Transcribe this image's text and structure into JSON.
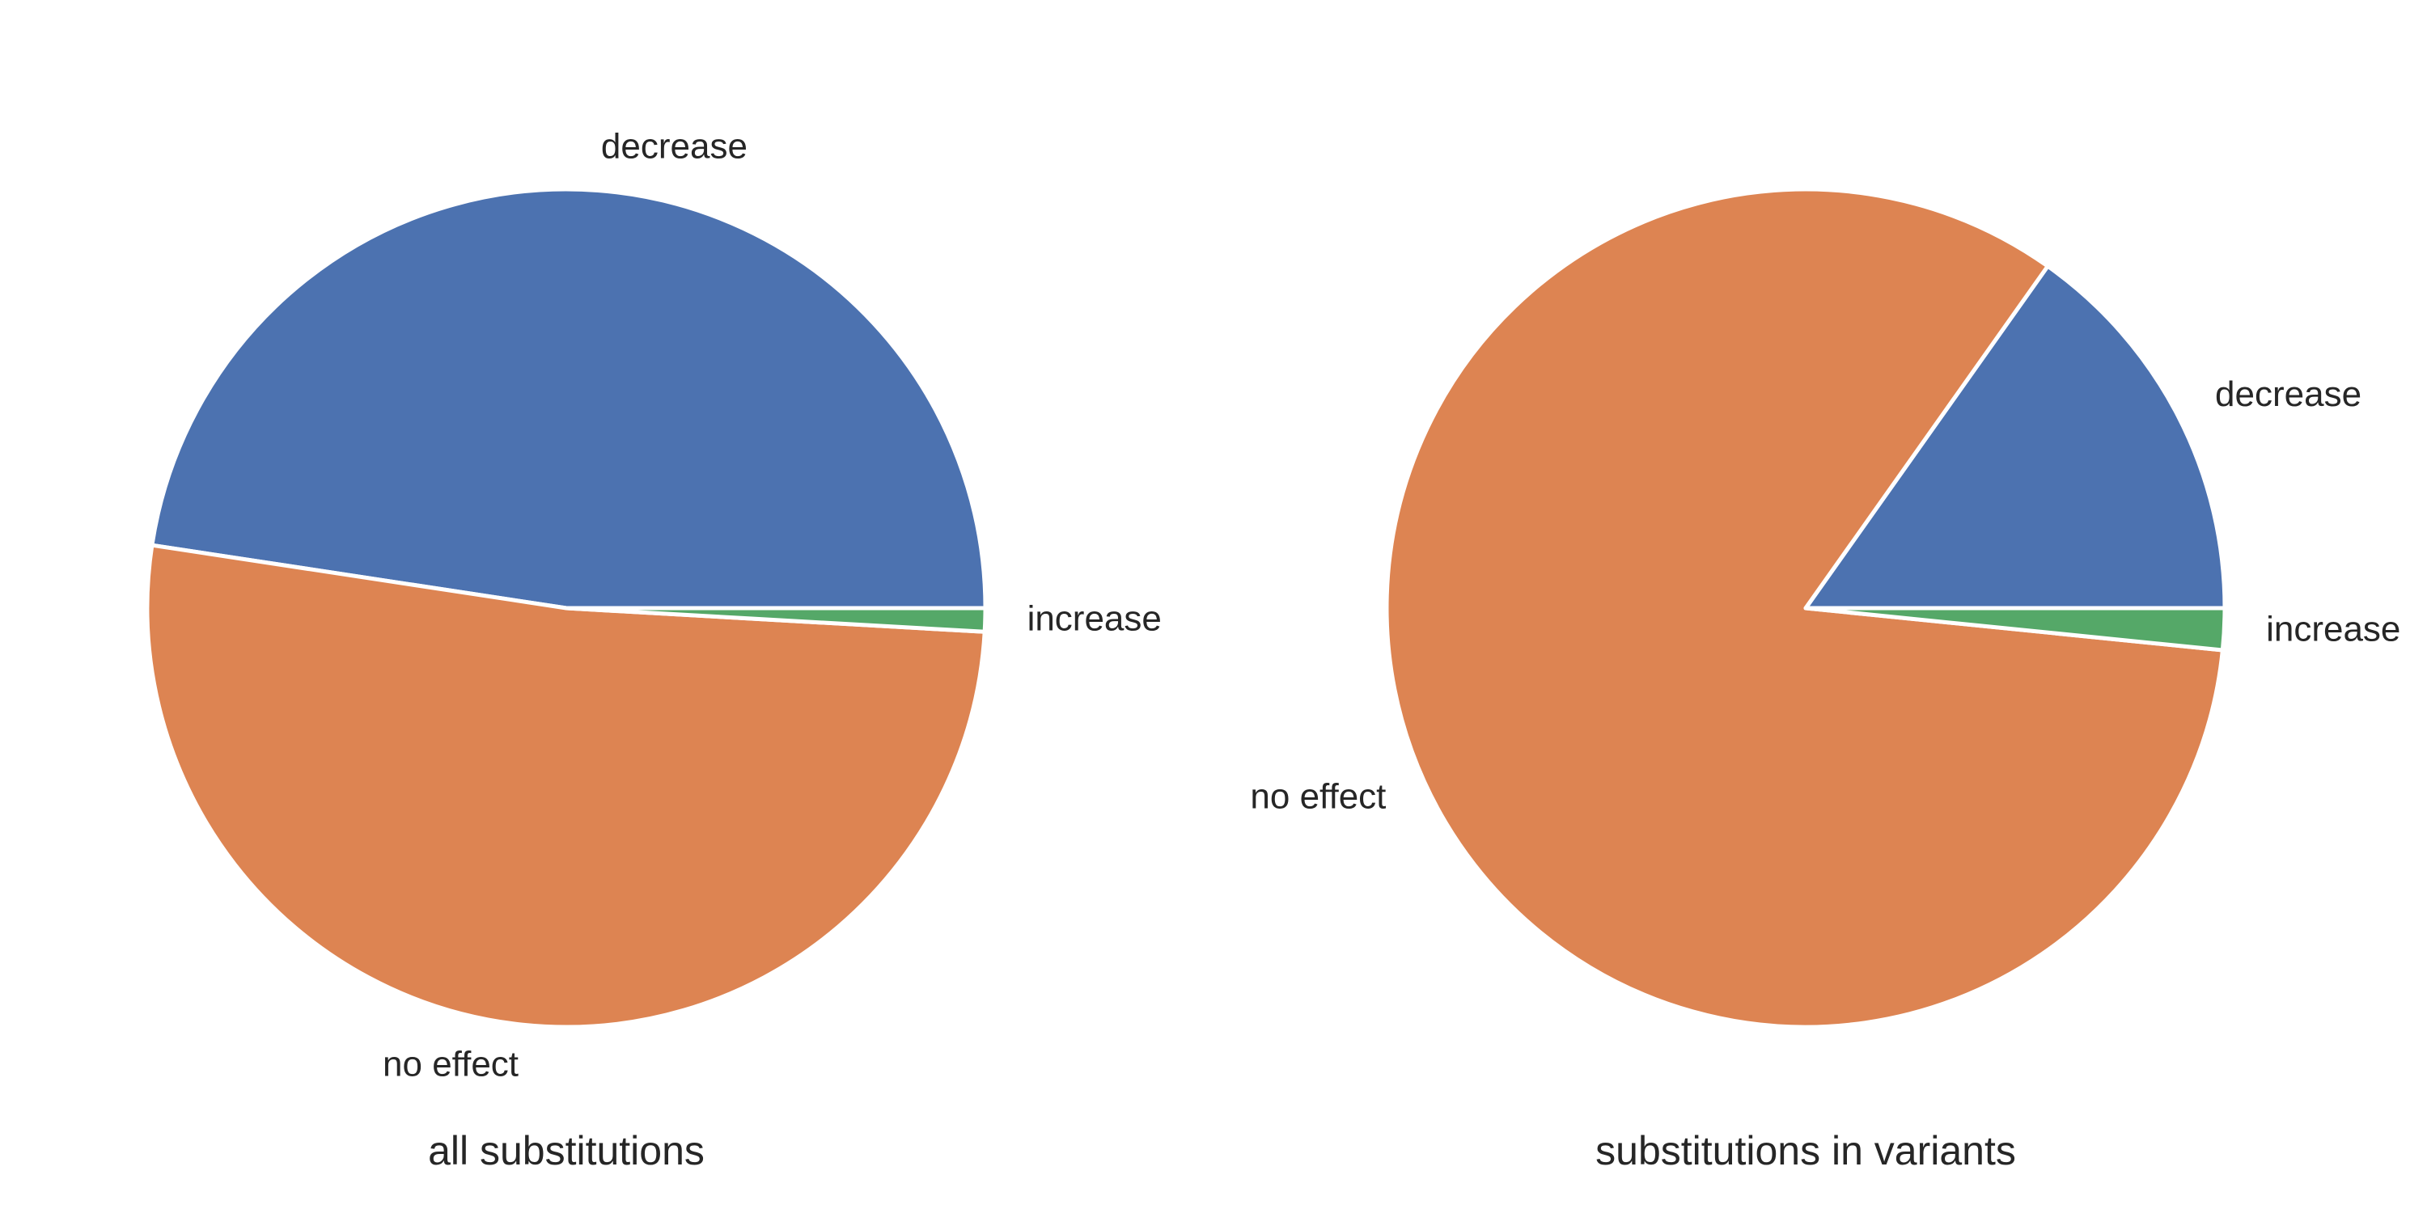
{
  "chart_data": [
    {
      "type": "pie",
      "title": "all substitutions",
      "categories": [
        "decrease",
        "no effect",
        "increase"
      ],
      "values": [
        47.6,
        51.5,
        0.9
      ],
      "unit": "percent",
      "colors": [
        "#4c72b0",
        "#dd8452",
        "#55a868"
      ],
      "legend": "none (slice labels)"
    },
    {
      "type": "pie",
      "title": "substitutions in variants",
      "categories": [
        "decrease",
        "no effect",
        "increase"
      ],
      "values": [
        15.2,
        83.2,
        1.6
      ],
      "unit": "percent",
      "colors": [
        "#4c72b0",
        "#dd8452",
        "#55a868"
      ],
      "legend": "none (slice labels)"
    }
  ]
}
